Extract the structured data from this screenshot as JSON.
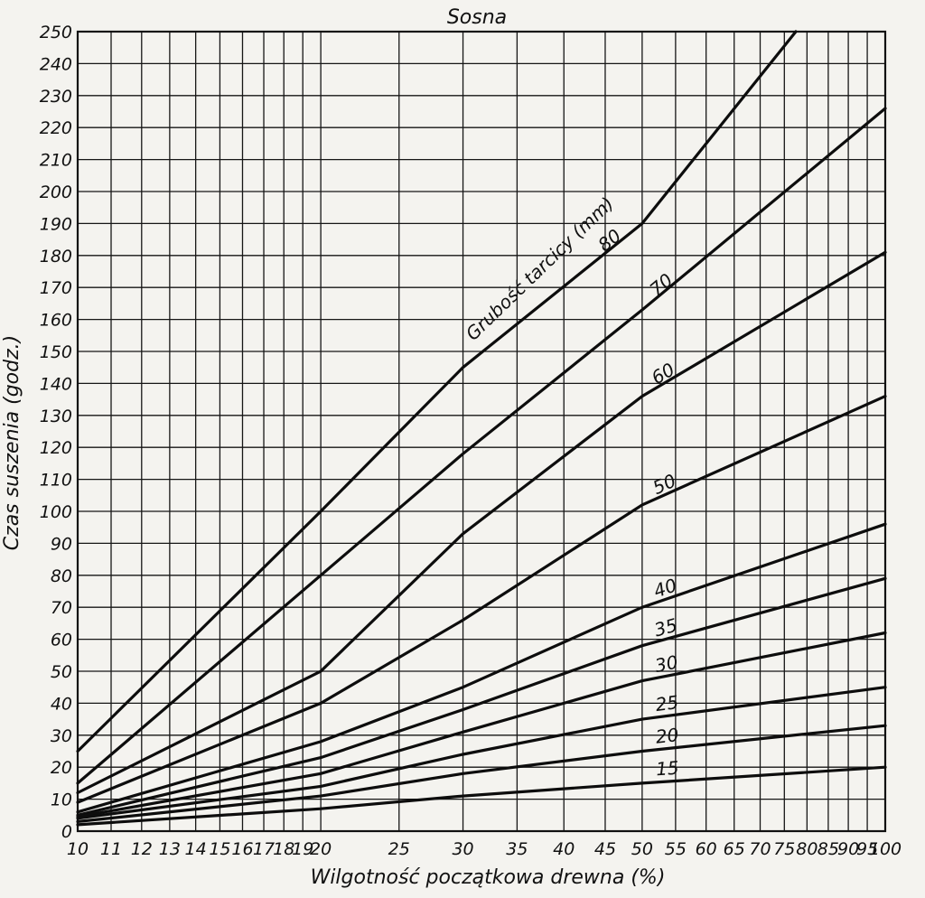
{
  "chart_data": {
    "type": "line",
    "title": "Sosna",
    "xlabel": "Wilgotność początkowa drewna (%)",
    "ylabel": "Czas suszenia (godz.)",
    "x_scale": "log",
    "xlim": [
      10,
      100
    ],
    "ylim": [
      0,
      250
    ],
    "grid": true,
    "x_ticks": [
      10,
      11,
      12,
      13,
      14,
      15,
      16,
      17,
      18,
      19,
      20,
      25,
      30,
      35,
      40,
      45,
      50,
      55,
      60,
      65,
      70,
      75,
      80,
      85,
      90,
      95,
      100
    ],
    "y_ticks": [
      0,
      10,
      20,
      30,
      40,
      50,
      60,
      70,
      80,
      90,
      100,
      110,
      120,
      130,
      140,
      150,
      160,
      170,
      180,
      190,
      200,
      210,
      220,
      230,
      240,
      250
    ],
    "series_title": "Grubość tarcicy (mm)",
    "series": [
      {
        "name": "80",
        "points": [
          [
            10,
            25
          ],
          [
            20,
            100
          ],
          [
            30,
            145
          ],
          [
            50,
            190
          ],
          [
            77.5,
            250
          ]
        ]
      },
      {
        "name": "70",
        "points": [
          [
            10,
            15
          ],
          [
            20,
            80
          ],
          [
            30,
            118
          ],
          [
            50,
            163
          ],
          [
            100,
            226
          ]
        ]
      },
      {
        "name": "60",
        "points": [
          [
            10,
            12
          ],
          [
            20,
            50
          ],
          [
            30,
            93
          ],
          [
            50,
            136
          ],
          [
            100,
            181
          ]
        ]
      },
      {
        "name": "50",
        "points": [
          [
            10,
            9
          ],
          [
            20,
            40
          ],
          [
            30,
            66
          ],
          [
            50,
            102
          ],
          [
            100,
            136
          ]
        ]
      },
      {
        "name": "40",
        "points": [
          [
            10,
            6
          ],
          [
            20,
            28
          ],
          [
            30,
            45
          ],
          [
            50,
            70
          ],
          [
            100,
            96
          ]
        ]
      },
      {
        "name": "35",
        "points": [
          [
            10,
            5
          ],
          [
            20,
            23
          ],
          [
            30,
            38
          ],
          [
            50,
            58
          ],
          [
            100,
            79
          ]
        ]
      },
      {
        "name": "30",
        "points": [
          [
            10,
            4.5
          ],
          [
            20,
            18
          ],
          [
            30,
            31
          ],
          [
            50,
            47
          ],
          [
            100,
            62
          ]
        ]
      },
      {
        "name": "25",
        "points": [
          [
            10,
            4
          ],
          [
            20,
            14
          ],
          [
            30,
            24
          ],
          [
            50,
            35
          ],
          [
            100,
            45
          ]
        ]
      },
      {
        "name": "20",
        "points": [
          [
            10,
            3
          ],
          [
            20,
            11
          ],
          [
            30,
            18
          ],
          [
            50,
            25
          ],
          [
            100,
            33
          ]
        ]
      },
      {
        "name": "15",
        "points": [
          [
            10,
            2
          ],
          [
            20,
            7
          ],
          [
            30,
            11
          ],
          [
            50,
            15
          ],
          [
            100,
            20
          ]
        ]
      }
    ]
  }
}
